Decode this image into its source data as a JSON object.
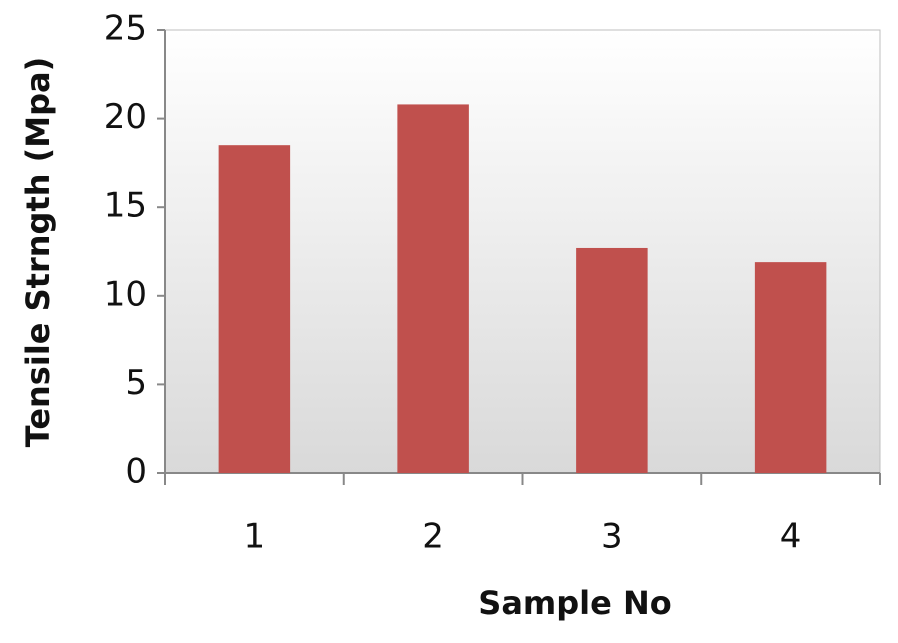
{
  "chart_data": {
    "type": "bar",
    "x_label": "Sample No",
    "y_label": "Tensile Strngth (Mpa)",
    "categories": [
      "1",
      "2",
      "3",
      "4"
    ],
    "values": [
      18.5,
      20.8,
      12.7,
      11.9
    ],
    "color": "#c0504d",
    "ylim": [
      0,
      25
    ],
    "yticks": [
      0,
      5,
      10,
      15,
      20,
      25
    ]
  }
}
